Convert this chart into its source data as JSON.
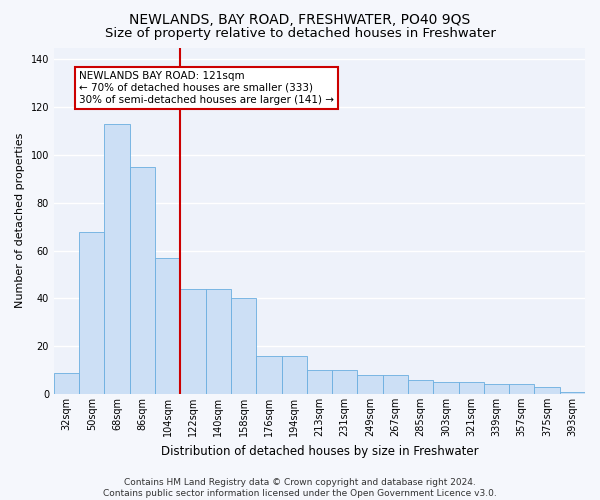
{
  "title": "NEWLANDS, BAY ROAD, FRESHWATER, PO40 9QS",
  "subtitle": "Size of property relative to detached houses in Freshwater",
  "xlabel": "Distribution of detached houses by size in Freshwater",
  "ylabel": "Number of detached properties",
  "categories": [
    "32sqm",
    "50sqm",
    "68sqm",
    "86sqm",
    "104sqm",
    "122sqm",
    "140sqm",
    "158sqm",
    "176sqm",
    "194sqm",
    "213sqm",
    "231sqm",
    "249sqm",
    "267sqm",
    "285sqm",
    "303sqm",
    "321sqm",
    "339sqm",
    "357sqm",
    "375sqm",
    "393sqm"
  ],
  "values": [
    9,
    68,
    113,
    95,
    57,
    44,
    44,
    40,
    16,
    16,
    10,
    10,
    8,
    8,
    6,
    5,
    5,
    4,
    4,
    3,
    1
  ],
  "bar_color": "#ccdff5",
  "bar_edge_color": "#6aaee0",
  "vline_index": 5,
  "vline_color": "#cc0000",
  "annotation_title": "NEWLANDS BAY ROAD: 121sqm",
  "annotation_line1": "← 70% of detached houses are smaller (333)",
  "annotation_line2": "30% of semi-detached houses are larger (141) →",
  "annotation_box_facecolor": "#ffffff",
  "annotation_box_edgecolor": "#cc0000",
  "ylim": [
    0,
    145
  ],
  "yticks": [
    0,
    20,
    40,
    60,
    80,
    100,
    120,
    140
  ],
  "plot_facecolor": "#eef2fa",
  "fig_facecolor": "#f5f7fc",
  "grid_color": "#ffffff",
  "title_fontsize": 10,
  "subtitle_fontsize": 9.5,
  "xlabel_fontsize": 8.5,
  "ylabel_fontsize": 8,
  "tick_fontsize": 7,
  "annotation_fontsize": 7.5,
  "footer_fontsize": 6.5,
  "footer": "Contains HM Land Registry data © Crown copyright and database right 2024.\nContains public sector information licensed under the Open Government Licence v3.0."
}
